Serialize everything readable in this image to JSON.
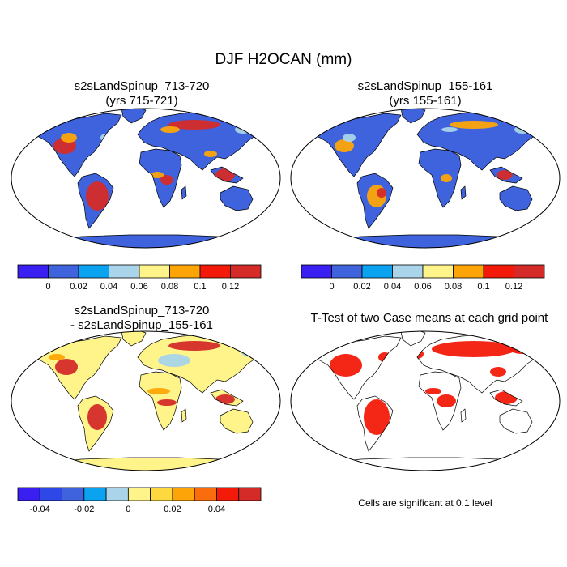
{
  "title": "DJF H2OCAN (mm)",
  "panels": [
    {
      "title_line1": "s2sLandSpinup_713-720",
      "title_line2": "(yrs 715-721)"
    },
    {
      "title_line1": "s2sLandSpinup_155-161",
      "title_line2": "(yrs 155-161)"
    },
    {
      "title_line1": "s2sLandSpinup_713-720",
      "title_line2": "- s2sLandSpinup_155-161"
    },
    {
      "title_line1": "T-Test of two Case means at each grid point",
      "title_line2": ""
    }
  ],
  "colorbar_abs": {
    "colors": [
      "#3a1ff2",
      "#3f63dd",
      "#0ba2ef",
      "#a9d4ea",
      "#fef489",
      "#fda508",
      "#f31a0a",
      "#d42b28"
    ],
    "labels": [
      "0",
      "0.02",
      "0.04",
      "0.06",
      "0.08",
      "0.1",
      "0.12"
    ]
  },
  "colorbar_diff": {
    "colors": [
      "#3a1ff2",
      "#2d48e6",
      "#3f63dd",
      "#0ba2ef",
      "#a9d4ea",
      "#fef489",
      "#fdd93f",
      "#fda508",
      "#f96d0c",
      "#f31a0a",
      "#d42b28"
    ],
    "labels": [
      "-0.04",
      "-0.02",
      "0",
      "0.02",
      "0.04"
    ]
  },
  "ttest_note": "Cells are significant at 0.1 level",
  "map_colors": {
    "ocean_fill": "#ffffff",
    "land_low_abs": "#3f63dd",
    "land_low_diff": "#fef489",
    "signif": "#f31a0a",
    "high": "#d42b28",
    "mid": "#fda508",
    "light": "#a9d4ea",
    "cyan": "#0ba2ef"
  }
}
